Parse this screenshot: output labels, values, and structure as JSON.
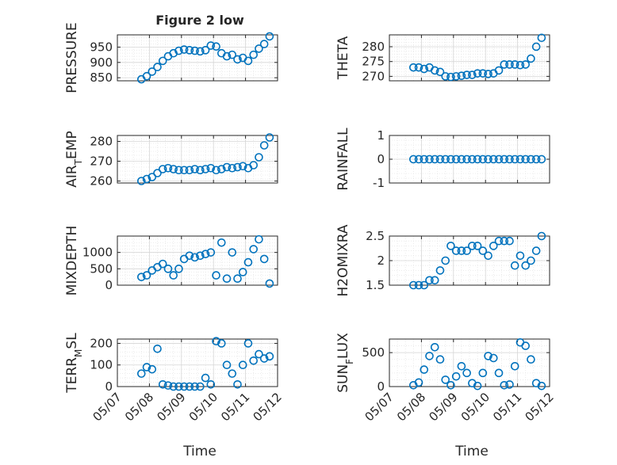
{
  "figure": {
    "title": "Figure 2 low",
    "xlabel": "Time",
    "date_ticks": [
      "05/07",
      "05/08",
      "05/09",
      "05/10",
      "05/11",
      "05/12"
    ],
    "marker_color": "#0072BD"
  },
  "chart_data": [
    {
      "type": "scatter",
      "marker": "open-circle",
      "ylabel": "PRESSURE",
      "ylim": [
        840,
        990
      ],
      "yticks": [
        850,
        900,
        950
      ],
      "xlim": [
        "05/07",
        "05/12"
      ],
      "grid": true,
      "x": [
        "05/07 18:00",
        "05/07 22:00",
        "05/08 02:00",
        "05/08 06:00",
        "05/08 10:00",
        "05/08 14:00",
        "05/08 18:00",
        "05/08 22:00",
        "05/09 02:00",
        "05/09 06:00",
        "05/09 10:00",
        "05/09 14:00",
        "05/09 18:00",
        "05/09 22:00",
        "05/10 02:00",
        "05/10 06:00",
        "05/10 10:00",
        "05/10 14:00",
        "05/10 18:00",
        "05/10 22:00",
        "05/11 02:00",
        "05/11 06:00",
        "05/11 10:00",
        "05/11 14:00",
        "05/11 18:00"
      ],
      "y": [
        845,
        855,
        870,
        885,
        905,
        920,
        930,
        938,
        942,
        940,
        938,
        936,
        940,
        955,
        952,
        930,
        920,
        925,
        910,
        915,
        905,
        925,
        945,
        960,
        985
      ]
    },
    {
      "type": "scatter",
      "marker": "open-circle",
      "ylabel": "THETA",
      "ylim": [
        268.5,
        284
      ],
      "yticks": [
        270,
        275,
        280
      ],
      "xlim": [
        "05/07",
        "05/12"
      ],
      "grid": true,
      "x": [
        "05/07 18:00",
        "05/07 22:00",
        "05/08 02:00",
        "05/08 06:00",
        "05/08 10:00",
        "05/08 14:00",
        "05/08 18:00",
        "05/08 22:00",
        "05/09 02:00",
        "05/09 06:00",
        "05/09 10:00",
        "05/09 14:00",
        "05/09 18:00",
        "05/09 22:00",
        "05/10 02:00",
        "05/10 06:00",
        "05/10 10:00",
        "05/10 14:00",
        "05/10 18:00",
        "05/10 22:00",
        "05/11 02:00",
        "05/11 06:00",
        "05/11 10:00",
        "05/11 14:00",
        "05/11 18:00"
      ],
      "y": [
        273,
        273,
        272.5,
        273,
        272,
        271.5,
        270,
        269.8,
        270,
        270.2,
        270.5,
        270.5,
        271,
        271,
        270.8,
        271,
        272,
        274,
        274,
        274,
        273.8,
        274,
        276,
        280,
        283
      ]
    },
    {
      "type": "scatter",
      "marker": "open-circle",
      "ylabel": "AIR_TEMP",
      "ylim": [
        259,
        283
      ],
      "yticks": [
        260,
        270,
        280
      ],
      "xlim": [
        "05/07",
        "05/12"
      ],
      "grid": true,
      "x": [
        "05/07 18:00",
        "05/07 22:00",
        "05/08 02:00",
        "05/08 06:00",
        "05/08 10:00",
        "05/08 14:00",
        "05/08 18:00",
        "05/08 22:00",
        "05/09 02:00",
        "05/09 06:00",
        "05/09 10:00",
        "05/09 14:00",
        "05/09 18:00",
        "05/09 22:00",
        "05/10 02:00",
        "05/10 06:00",
        "05/10 10:00",
        "05/10 14:00",
        "05/10 18:00",
        "05/10 22:00",
        "05/11 02:00",
        "05/11 06:00",
        "05/11 10:00",
        "05/11 14:00",
        "05/11 18:00"
      ],
      "y": [
        260,
        261,
        262,
        264,
        266,
        266.5,
        266,
        265.5,
        265.5,
        265.5,
        266,
        265.5,
        266,
        266.5,
        265.5,
        266,
        267,
        266.5,
        267,
        267.5,
        266.5,
        268,
        272,
        278,
        282
      ]
    },
    {
      "type": "scatter",
      "marker": "open-circle",
      "ylabel": "RAINFALL",
      "ylim": [
        -1,
        1
      ],
      "yticks": [
        -1,
        0,
        1
      ],
      "xlim": [
        "05/07",
        "05/12"
      ],
      "grid": true,
      "x": [
        "05/07 18:00",
        "05/07 22:00",
        "05/08 02:00",
        "05/08 06:00",
        "05/08 10:00",
        "05/08 14:00",
        "05/08 18:00",
        "05/08 22:00",
        "05/09 02:00",
        "05/09 06:00",
        "05/09 10:00",
        "05/09 14:00",
        "05/09 18:00",
        "05/09 22:00",
        "05/10 02:00",
        "05/10 06:00",
        "05/10 10:00",
        "05/10 14:00",
        "05/10 18:00",
        "05/10 22:00",
        "05/11 02:00",
        "05/11 06:00",
        "05/11 10:00",
        "05/11 14:00",
        "05/11 18:00"
      ],
      "y": [
        0,
        0,
        0,
        0,
        0,
        0,
        0,
        0,
        0,
        0,
        0,
        0,
        0,
        0,
        0,
        0,
        0,
        0,
        0,
        0,
        0,
        0,
        0,
        0,
        0
      ]
    },
    {
      "type": "scatter",
      "marker": "open-circle",
      "ylabel": "MIXDEPTH",
      "ylim": [
        0,
        1500
      ],
      "yticks": [
        0,
        500,
        1000
      ],
      "xlim": [
        "05/07",
        "05/12"
      ],
      "grid": true,
      "x": [
        "05/07 18:00",
        "05/07 22:00",
        "05/08 02:00",
        "05/08 06:00",
        "05/08 10:00",
        "05/08 14:00",
        "05/08 18:00",
        "05/08 22:00",
        "05/09 02:00",
        "05/09 06:00",
        "05/09 10:00",
        "05/09 14:00",
        "05/09 18:00",
        "05/09 22:00",
        "05/10 02:00",
        "05/10 06:00",
        "05/10 10:00",
        "05/10 14:00",
        "05/10 18:00",
        "05/10 22:00",
        "05/11 02:00",
        "05/11 06:00",
        "05/11 10:00",
        "05/11 14:00",
        "05/11 18:00"
      ],
      "y": [
        250,
        300,
        450,
        550,
        650,
        500,
        300,
        500,
        800,
        900,
        850,
        900,
        950,
        1000,
        300,
        1300,
        200,
        1000,
        200,
        400,
        700,
        1100,
        1400,
        800,
        50
      ]
    },
    {
      "type": "scatter",
      "marker": "open-circle",
      "ylabel": "H2OMIXRA",
      "ylim": [
        1.5,
        2.5
      ],
      "yticks": [
        1.5,
        2,
        2.5
      ],
      "xlim": [
        "05/07",
        "05/12"
      ],
      "grid": true,
      "x": [
        "05/07 18:00",
        "05/07 22:00",
        "05/08 02:00",
        "05/08 06:00",
        "05/08 10:00",
        "05/08 14:00",
        "05/08 18:00",
        "05/08 22:00",
        "05/09 02:00",
        "05/09 06:00",
        "05/09 10:00",
        "05/09 14:00",
        "05/09 18:00",
        "05/09 22:00",
        "05/10 02:00",
        "05/10 06:00",
        "05/10 10:00",
        "05/10 14:00",
        "05/10 18:00",
        "05/10 22:00",
        "05/11 02:00",
        "05/11 06:00",
        "05/11 10:00",
        "05/11 14:00",
        "05/11 18:00"
      ],
      "y": [
        1.5,
        1.5,
        1.5,
        1.6,
        1.6,
        1.8,
        2.0,
        2.3,
        2.2,
        2.2,
        2.2,
        2.3,
        2.3,
        2.2,
        2.1,
        2.3,
        2.4,
        2.4,
        2.4,
        1.9,
        2.1,
        1.9,
        2.0,
        2.2,
        2.5
      ]
    },
    {
      "type": "scatter",
      "marker": "open-circle",
      "ylabel": "TERR_MSL",
      "ylim": [
        0,
        220
      ],
      "yticks": [
        0,
        100,
        200
      ],
      "xlim": [
        "05/07",
        "05/12"
      ],
      "grid": true,
      "x": [
        "05/07 18:00",
        "05/07 22:00",
        "05/08 02:00",
        "05/08 06:00",
        "05/08 10:00",
        "05/08 14:00",
        "05/08 18:00",
        "05/08 22:00",
        "05/09 02:00",
        "05/09 06:00",
        "05/09 10:00",
        "05/09 14:00",
        "05/09 18:00",
        "05/09 22:00",
        "05/10 02:00",
        "05/10 06:00",
        "05/10 10:00",
        "05/10 14:00",
        "05/10 18:00",
        "05/10 22:00",
        "05/11 02:00",
        "05/11 06:00",
        "05/11 10:00",
        "05/11 14:00",
        "05/11 18:00"
      ],
      "y": [
        60,
        90,
        80,
        175,
        10,
        5,
        0,
        0,
        0,
        0,
        0,
        0,
        40,
        10,
        210,
        200,
        100,
        60,
        10,
        100,
        200,
        120,
        150,
        130,
        140
      ]
    },
    {
      "type": "scatter",
      "marker": "open-circle",
      "ylabel": "SUN_FLUX",
      "ylim": [
        0,
        700
      ],
      "yticks": [
        0,
        500
      ],
      "xlim": [
        "05/07",
        "05/12"
      ],
      "grid": true,
      "x": [
        "05/07 18:00",
        "05/07 22:00",
        "05/08 02:00",
        "05/08 06:00",
        "05/08 10:00",
        "05/08 14:00",
        "05/08 18:00",
        "05/08 22:00",
        "05/09 02:00",
        "05/09 06:00",
        "05/09 10:00",
        "05/09 14:00",
        "05/09 18:00",
        "05/09 22:00",
        "05/10 02:00",
        "05/10 06:00",
        "05/10 10:00",
        "05/10 14:00",
        "05/10 18:00",
        "05/10 22:00",
        "05/11 02:00",
        "05/11 06:00",
        "05/11 10:00",
        "05/11 14:00",
        "05/11 18:00"
      ],
      "y": [
        20,
        60,
        250,
        450,
        580,
        400,
        100,
        20,
        150,
        300,
        200,
        50,
        10,
        200,
        450,
        420,
        200,
        20,
        30,
        300,
        650,
        600,
        400,
        50,
        10
      ]
    }
  ]
}
